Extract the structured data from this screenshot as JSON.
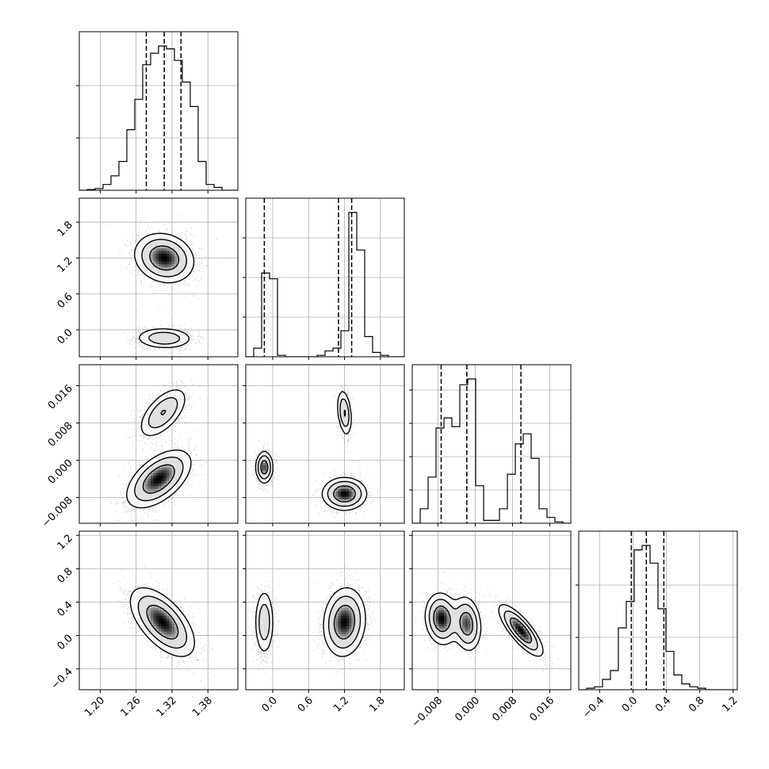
{
  "chart_data": {
    "type": "corner",
    "parameters": [
      {
        "id": "p0",
        "range": [
          1.165,
          1.43
        ],
        "ticks": [
          1.2,
          1.26,
          1.32,
          1.38
        ],
        "tick_labels": [
          "1.20",
          "1.26",
          "1.32",
          "1.38"
        ],
        "quantiles": [
          1.277,
          1.307,
          1.335
        ],
        "marginal_grid_y": [
          0.33,
          0.66
        ]
      },
      {
        "id": "p1",
        "range": [
          -0.45,
          2.2
        ],
        "ticks": [
          0.0,
          0.6,
          1.2,
          1.8
        ],
        "tick_labels": [
          "0.0",
          "0.6",
          "1.2",
          "1.8"
        ],
        "quantiles": [
          -0.14,
          1.1,
          1.32
        ],
        "marginal_grid_y": [
          0.25,
          0.5,
          0.75
        ]
      },
      {
        "id": "p2",
        "range": [
          -0.0135,
          0.0205
        ],
        "ticks": [
          -0.008,
          0.0,
          0.008,
          0.016
        ],
        "tick_labels": [
          "−0.008",
          "0.000",
          "0.008",
          "0.016"
        ],
        "quantiles": [
          -0.0073,
          -0.0018,
          0.0098
        ],
        "marginal_grid_y": [
          0.21,
          0.42,
          0.63,
          0.84
        ]
      },
      {
        "id": "p3",
        "range": [
          -0.65,
          1.25
        ],
        "ticks": [
          -0.4,
          0.0,
          0.4,
          0.8,
          1.2
        ],
        "tick_labels": [
          "−0.4",
          "0.0",
          "0.4",
          "0.8",
          "1.2"
        ],
        "quantiles": [
          -0.02,
          0.16,
          0.37
        ],
        "marginal_grid_y": [
          0.33,
          0.66
        ]
      }
    ],
    "histograms": [
      {
        "param": 0,
        "bin_edges": [
          1.165,
          1.1783,
          1.1915,
          1.2048,
          1.218,
          1.2313,
          1.2445,
          1.2578,
          1.271,
          1.2843,
          1.2975,
          1.3108,
          1.324,
          1.3373,
          1.3505,
          1.3638,
          1.377,
          1.3903,
          1.4035,
          1.4168,
          1.43
        ],
        "heights": [
          0.0,
          0.005,
          0.012,
          0.04,
          0.1,
          0.2,
          0.42,
          0.63,
          0.87,
          0.95,
          1.0,
          0.98,
          0.9,
          0.75,
          0.58,
          0.2,
          0.04,
          0.02,
          0.0,
          0.0
        ]
      },
      {
        "param": 1,
        "bin_edges": [
          -0.45,
          -0.3175,
          -0.185,
          -0.0525,
          0.08,
          0.2125,
          0.345,
          0.4775,
          0.61,
          0.7425,
          0.875,
          1.0075,
          1.14,
          1.2725,
          1.405,
          1.5375,
          1.67,
          1.8025,
          1.935,
          2.0675,
          2.2
        ],
        "heights": [
          0.0,
          0.06,
          0.58,
          0.54,
          0.01,
          0.0,
          0.0,
          0.0,
          0.0,
          0.01,
          0.04,
          0.06,
          0.18,
          1.0,
          0.74,
          0.14,
          0.03,
          0.01,
          0.0,
          0.0
        ]
      },
      {
        "param": 2,
        "bin_edges": [
          -0.0135,
          -0.0118,
          -0.0101,
          -0.0084,
          -0.0067,
          -0.005,
          -0.0033,
          -0.0016,
          0.0001,
          0.0018,
          0.0035,
          0.0052,
          0.0069,
          0.0086,
          0.0103,
          0.012,
          0.0137,
          0.0154,
          0.0171,
          0.0188,
          0.0205
        ],
        "heights": [
          0.0,
          0.1,
          0.32,
          0.66,
          0.73,
          0.67,
          0.96,
          1.0,
          0.26,
          0.02,
          0.02,
          0.1,
          0.34,
          0.55,
          0.62,
          0.45,
          0.1,
          0.04,
          0.01,
          0.0
        ]
      },
      {
        "param": 3,
        "bin_edges": [
          -0.65,
          -0.555,
          -0.46,
          -0.365,
          -0.27,
          -0.175,
          -0.08,
          0.015,
          0.11,
          0.205,
          0.3,
          0.395,
          0.49,
          0.585,
          0.68,
          0.775,
          0.87,
          0.965,
          1.06,
          1.155,
          1.25
        ],
        "heights": [
          0.0,
          0.01,
          0.02,
          0.07,
          0.13,
          0.42,
          0.6,
          0.95,
          0.98,
          0.86,
          0.55,
          0.26,
          0.1,
          0.04,
          0.02,
          0.01,
          0.0,
          0.0,
          0.0,
          0.0
        ]
      }
    ],
    "pair_panels": [
      {
        "x": 0,
        "y": 1,
        "clusters": [
          {
            "cx": 1.307,
            "cy": 1.2,
            "sx": 0.024,
            "sy": 0.2,
            "rho": -0.15,
            "weight": 0.65
          },
          {
            "cx": 1.307,
            "cy": -0.14,
            "sx": 0.024,
            "sy": 0.09,
            "rho": -0.05,
            "weight": 0.35
          }
        ]
      },
      {
        "x": 0,
        "y": 2,
        "clusters": [
          {
            "cx": 1.305,
            "cy": 0.0102,
            "sx": 0.02,
            "sy": 0.0027,
            "rho": 0.6,
            "weight": 0.38
          },
          {
            "cx": 1.298,
            "cy": -0.004,
            "sx": 0.026,
            "sy": 0.003,
            "rho": 0.55,
            "weight": 0.62
          }
        ]
      },
      {
        "x": 0,
        "y": 3,
        "clusters": [
          {
            "cx": 1.304,
            "cy": 0.16,
            "sx": 0.026,
            "sy": 0.2,
            "rho": -0.6,
            "weight": 1.0
          }
        ]
      },
      {
        "x": 1,
        "y": 2,
        "clusters": [
          {
            "cx": -0.14,
            "cy": -0.0015,
            "sx": 0.07,
            "sy": 0.0017,
            "rho": 0.0,
            "weight": 0.35
          },
          {
            "cx": 1.2,
            "cy": 0.0102,
            "sx": 0.06,
            "sy": 0.0025,
            "rho": -0.3,
            "weight": 0.25
          },
          {
            "cx": 1.2,
            "cy": -0.0072,
            "sx": 0.18,
            "sy": 0.0017,
            "rho": 0.0,
            "weight": 0.4
          }
        ]
      },
      {
        "x": 1,
        "y": 3,
        "clusters": [
          {
            "cx": -0.14,
            "cy": 0.16,
            "sx": 0.08,
            "sy": 0.2,
            "rho": 0.0,
            "weight": 0.35
          },
          {
            "cx": 1.2,
            "cy": 0.16,
            "sx": 0.17,
            "sy": 0.2,
            "rho": 0.1,
            "weight": 0.65
          }
        ]
      },
      {
        "x": 2,
        "y": 3,
        "clusters": [
          {
            "cx": -0.0072,
            "cy": 0.2,
            "sx": 0.0017,
            "sy": 0.15,
            "rho": -0.1,
            "weight": 0.35
          },
          {
            "cx": -0.0018,
            "cy": 0.14,
            "sx": 0.0015,
            "sy": 0.16,
            "rho": -0.15,
            "weight": 0.3
          },
          {
            "cx": 0.0098,
            "cy": 0.06,
            "sx": 0.0023,
            "sy": 0.15,
            "rho": -0.8,
            "weight": 0.35
          }
        ]
      }
    ],
    "contour_levels": [
      0.12,
      0.3,
      0.6
    ],
    "grid": true,
    "legend": "none",
    "title": "",
    "xlabel": "",
    "ylabel": ""
  },
  "colors": {
    "axes": "#000000",
    "grid": "#b0b0b0",
    "points": "#000000",
    "density_dark": "#000000",
    "density_light": "#ffffff"
  }
}
